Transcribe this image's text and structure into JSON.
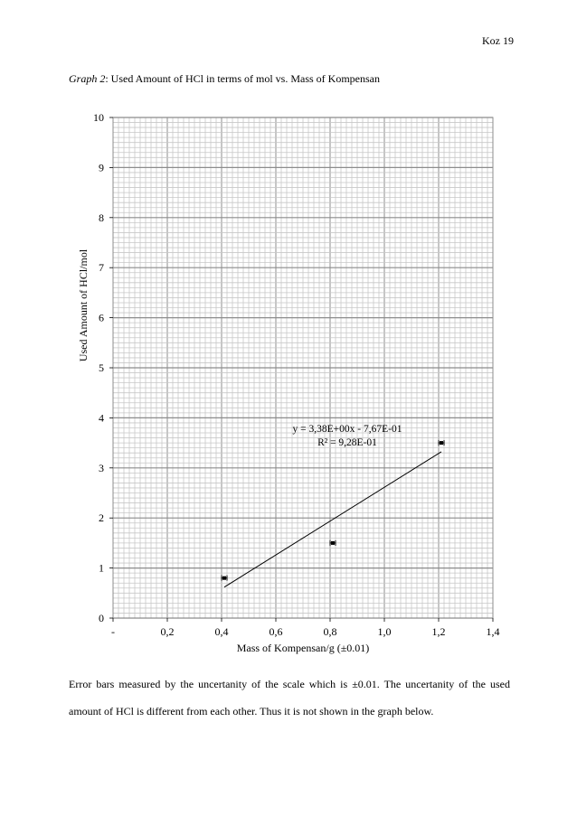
{
  "page": {
    "header": "Koz 19",
    "caption_italic": "Graph 2",
    "caption_rest": ": Used Amount of HCl in terms of mol vs. Mass of Kompensan",
    "paragraph": "Error bars measured by the uncertanity of the scale which is ±0.01. The uncertanity of the used amount of HCl is different from each other. Thus it is not shown in the graph below."
  },
  "chart_data": {
    "type": "scatter",
    "title": "",
    "xlabel": "Mass of Kompensan/g (±0.01)",
    "ylabel": "Used Amount of HCl/mol",
    "xlim": [
      0,
      1.4
    ],
    "ylim": [
      0,
      10
    ],
    "x_tick_labels": [
      "-",
      "0,2",
      "0,4",
      "0,6",
      "0,8",
      "1,0",
      "1,2",
      "1,4"
    ],
    "y_tick_labels": [
      "0",
      "1",
      "2",
      "3",
      "4",
      "5",
      "6",
      "7",
      "8",
      "9",
      "10"
    ],
    "grid": true,
    "points": [
      {
        "x": 0.41,
        "y": 0.8,
        "x_err": 0.01
      },
      {
        "x": 0.81,
        "y": 1.5,
        "x_err": 0.01
      },
      {
        "x": 1.21,
        "y": 3.5,
        "x_err": 0.01
      }
    ],
    "trendline": {
      "type": "linear",
      "slope": 3.38,
      "intercept": -0.767,
      "x_range": [
        0.41,
        1.21
      ],
      "equation_label": "y = 3,38E+00x - 7,67E-01",
      "r2_label": "R² = 9,28E-01"
    },
    "colors": {
      "grid_minor": "#c8c8c8",
      "grid_major": "#8c8c8c",
      "series": "#000000"
    }
  }
}
